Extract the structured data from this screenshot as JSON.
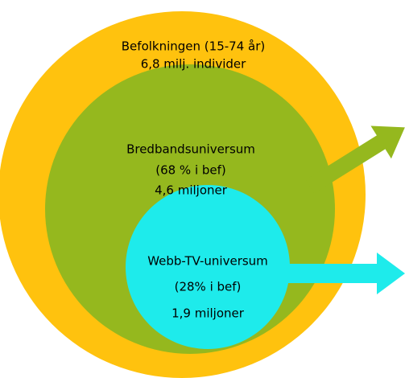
{
  "nodes": [
    {
      "label": "Befolkningen (15-74 år)",
      "lines": [
        "Befolkningen (15-74 år)",
        "6,8 milj. individer"
      ]
    },
    {
      "label": "Bredbandsuniversum",
      "lines": [
        "Bredbandsuniversum",
        "(68 % i bef)",
        "4,6 miljoner"
      ]
    },
    {
      "label": "Webb-TV-universum",
      "lines": [
        "Webb-TV-universum",
        "(28% i bef)",
        "1,9 miljoner"
      ]
    }
  ]
}
